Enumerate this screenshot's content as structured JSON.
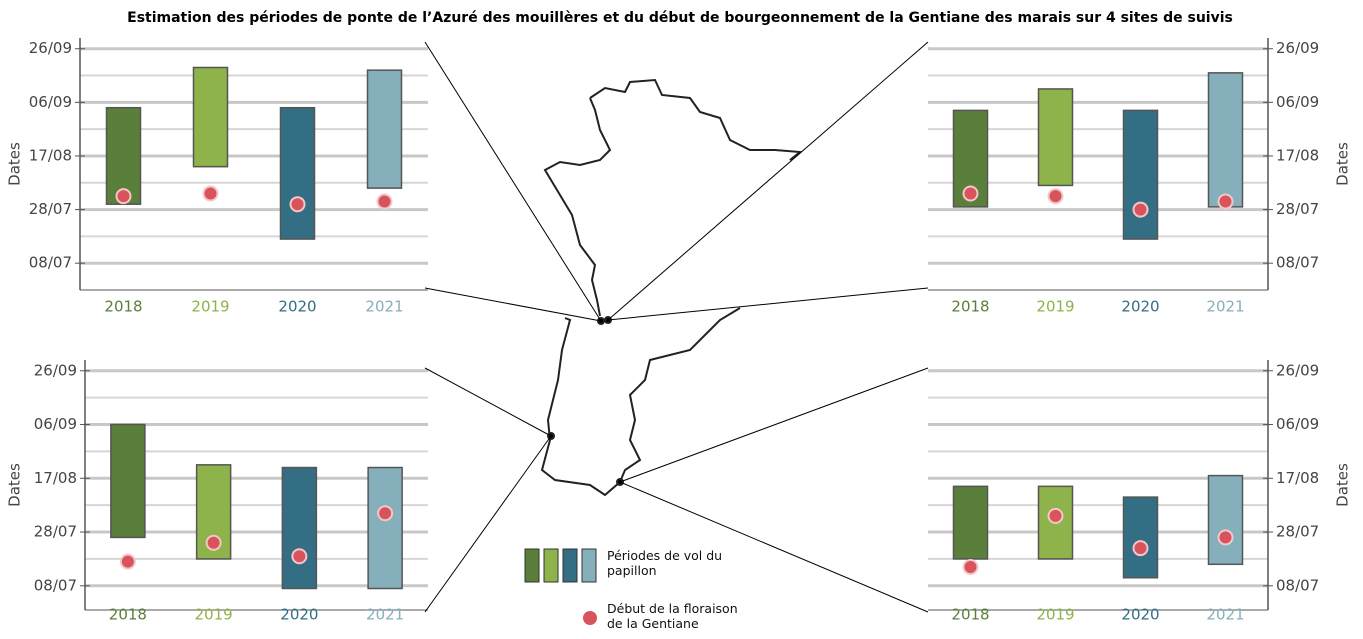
{
  "title": "Estimation des périodes de ponte de l’Azuré des mouillères et du début de bourgeonnement de la Gentiane des marais sur 4 sites de suivis",
  "legend": {
    "bars": "Périodes de vol du papillon",
    "dots": "Début de la floraison de  la Gentiane",
    "bar_colors": [
      "#5a7f3a",
      "#8db34a",
      "#346e85",
      "#86afbc"
    ],
    "dot_color": "#d9535d"
  },
  "chart_data": [
    {
      "type": "floating_bar",
      "ylabel": "Dates",
      "categories": [
        "2018",
        "2019",
        "2020",
        "2021"
      ],
      "colors": [
        "#5a7f3a",
        "#8db34a",
        "#346e85",
        "#86afbc"
      ],
      "dot_color": "#d9535d",
      "start": [
        211,
        225,
        198,
        217
      ],
      "end": [
        247,
        262,
        247,
        261
      ],
      "dots": [
        214,
        215,
        211,
        212
      ],
      "ylim": [
        179,
        273
      ],
      "yticks": [
        {
          "value": 189,
          "label": "08/07"
        },
        {
          "value": 209,
          "label": "28/07"
        },
        {
          "value": 229,
          "label": "17/08"
        },
        {
          "value": 249,
          "label": "06/09"
        },
        {
          "value": 269,
          "label": "26/09"
        }
      ],
      "minor_yticks": [
        199,
        219,
        239,
        259
      ],
      "grid": true
    },
    {
      "type": "floating_bar",
      "ylabel": "Dates",
      "categories": [
        "2018",
        "2019",
        "2020",
        "2021"
      ],
      "colors": [
        "#5a7f3a",
        "#8db34a",
        "#346e85",
        "#86afbc"
      ],
      "dot_color": "#d9535d",
      "start": [
        210,
        218,
        198,
        210
      ],
      "end": [
        246,
        254,
        246,
        260
      ],
      "dots": [
        215,
        214,
        209,
        212
      ],
      "ylim": [
        179,
        273
      ],
      "yticks": [
        {
          "value": 189,
          "label": "08/07"
        },
        {
          "value": 209,
          "label": "28/07"
        },
        {
          "value": 229,
          "label": "17/08"
        },
        {
          "value": 249,
          "label": "06/09"
        },
        {
          "value": 269,
          "label": "26/09"
        }
      ],
      "minor_yticks": [
        199,
        219,
        239,
        259
      ],
      "grid": true
    },
    {
      "type": "floating_bar",
      "ylabel": "Dates",
      "categories": [
        "2018",
        "2019",
        "2020",
        "2021"
      ],
      "colors": [
        "#5a7f3a",
        "#8db34a",
        "#346e85",
        "#86afbc"
      ],
      "dot_color": "#d9535d",
      "start": [
        207,
        199,
        188,
        188
      ],
      "end": [
        249,
        234,
        233,
        233
      ],
      "dots": [
        198,
        205,
        200,
        216
      ],
      "ylim": [
        180,
        273
      ],
      "yticks": [
        {
          "value": 189,
          "label": "08/07"
        },
        {
          "value": 209,
          "label": "28/07"
        },
        {
          "value": 229,
          "label": "17/08"
        },
        {
          "value": 249,
          "label": "06/09"
        },
        {
          "value": 269,
          "label": "26/09"
        }
      ],
      "minor_yticks": [
        199,
        219,
        239,
        259
      ],
      "grid": true
    },
    {
      "type": "floating_bar",
      "ylabel": "Dates",
      "categories": [
        "2018",
        "2019",
        "2020",
        "2021"
      ],
      "colors": [
        "#5a7f3a",
        "#8db34a",
        "#346e85",
        "#86afbc"
      ],
      "dot_color": "#d9535d",
      "start": [
        199,
        199,
        192,
        197
      ],
      "end": [
        226,
        226,
        222,
        230
      ],
      "dots": [
        196,
        215,
        203,
        207
      ],
      "ylim": [
        180,
        273
      ],
      "yticks": [
        {
          "value": 189,
          "label": "08/07"
        },
        {
          "value": 209,
          "label": "28/07"
        },
        {
          "value": 229,
          "label": "17/08"
        },
        {
          "value": 249,
          "label": "06/09"
        },
        {
          "value": 269,
          "label": "26/09"
        }
      ],
      "minor_yticks": [
        199,
        219,
        239,
        259
      ],
      "grid": true
    }
  ]
}
